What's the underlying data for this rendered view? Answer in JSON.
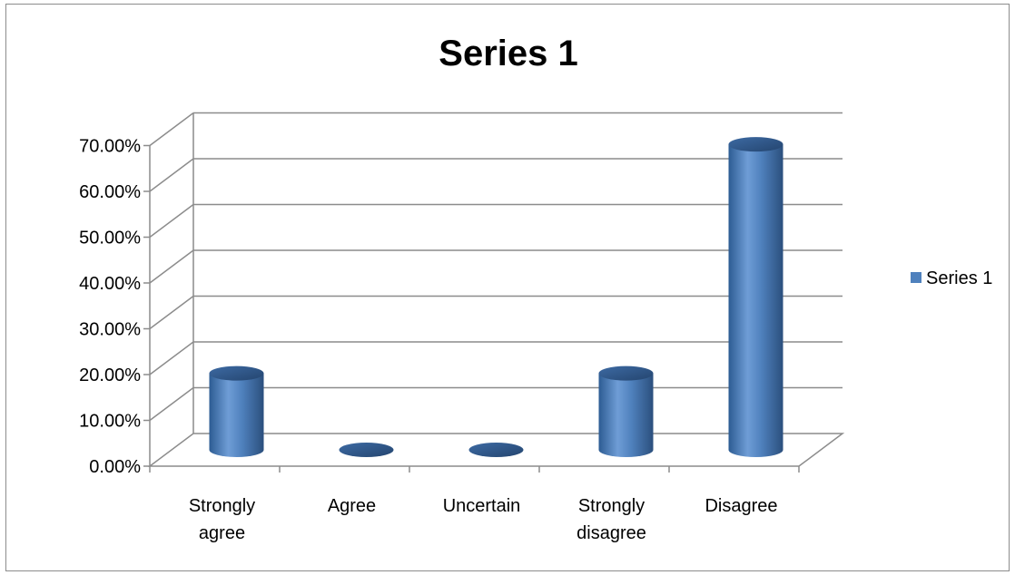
{
  "chart_data": {
    "type": "bar",
    "title": "Series 1",
    "categories": [
      "Strongly agree",
      "Agree",
      "Uncertain",
      "Strongly disagree",
      "Disagree"
    ],
    "category_lines": [
      [
        "Strongly",
        "agree"
      ],
      [
        "Agree"
      ],
      [
        "Uncertain"
      ],
      [
        "Strongly",
        "disagree"
      ],
      [
        "Disagree"
      ]
    ],
    "series": [
      {
        "name": "Series 1",
        "values": [
          0.167,
          0.0,
          0.0,
          0.167,
          0.667
        ],
        "color": "#4f81bd"
      }
    ],
    "yticks": [
      0,
      0.1,
      0.2,
      0.3,
      0.4,
      0.5,
      0.6,
      0.7
    ],
    "ytick_labels": [
      "0.00%",
      "10.00%",
      "20.00%",
      "30.00%",
      "40.00%",
      "50.00%",
      "60.00%",
      "70.00%"
    ],
    "ylim": [
      0,
      0.7
    ],
    "xlabel": "",
    "ylabel": "",
    "legend": {
      "position": "right",
      "label": "Series 1"
    },
    "grid": true,
    "style": "3d-cylinder"
  }
}
